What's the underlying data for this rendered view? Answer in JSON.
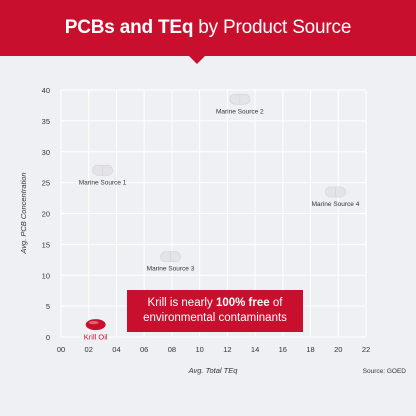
{
  "header": {
    "title_bold": "PCBs and TEq",
    "title_rest": "by Product Source"
  },
  "callout": {
    "line1_pre": "Krill is nearly",
    "line1_bold": "100% free",
    "line1_post": "of",
    "line2": "environmental contaminants"
  },
  "source_note": "Source: GOED",
  "colors": {
    "brand_red": "#c8102e",
    "background": "#eff0f4",
    "grid": "#ffffff",
    "marine_marker": "#e4e4e6",
    "krill_marker": "#c8102e"
  },
  "chart_data": {
    "type": "scatter",
    "xlabel": "Avg. Total TEq",
    "ylabel": "Avg. PCB Concentration",
    "xlim": [
      0,
      22
    ],
    "ylim": [
      0,
      40
    ],
    "x_ticks": [
      0,
      2,
      4,
      6,
      8,
      10,
      12,
      14,
      16,
      18,
      20,
      22
    ],
    "x_tick_labels": [
      "00",
      "02",
      "04",
      "06",
      "08",
      "10",
      "12",
      "14",
      "16",
      "18",
      "20",
      "22"
    ],
    "y_ticks": [
      0,
      5,
      10,
      15,
      20,
      25,
      30,
      35,
      40
    ],
    "y_tick_labels": [
      "0",
      "5",
      "10",
      "15",
      "20",
      "25",
      "30",
      "35",
      "40"
    ],
    "grid": true,
    "points": [
      {
        "label": "Marine Source 1",
        "x": 3.0,
        "y": 27.0,
        "label_pos": "below",
        "highlight": false
      },
      {
        "label": "Marine Source 2",
        "x": 12.9,
        "y": 38.5,
        "label_pos": "below",
        "highlight": false
      },
      {
        "label": "Marine Source 3",
        "x": 7.9,
        "y": 13.0,
        "label_pos": "below",
        "highlight": false
      },
      {
        "label": "Marine Source 4",
        "x": 19.8,
        "y": 23.5,
        "label_pos": "below",
        "highlight": false
      },
      {
        "label": "Krill Oil",
        "x": 2.5,
        "y": 2.0,
        "label_pos": "below",
        "highlight": true
      }
    ]
  }
}
